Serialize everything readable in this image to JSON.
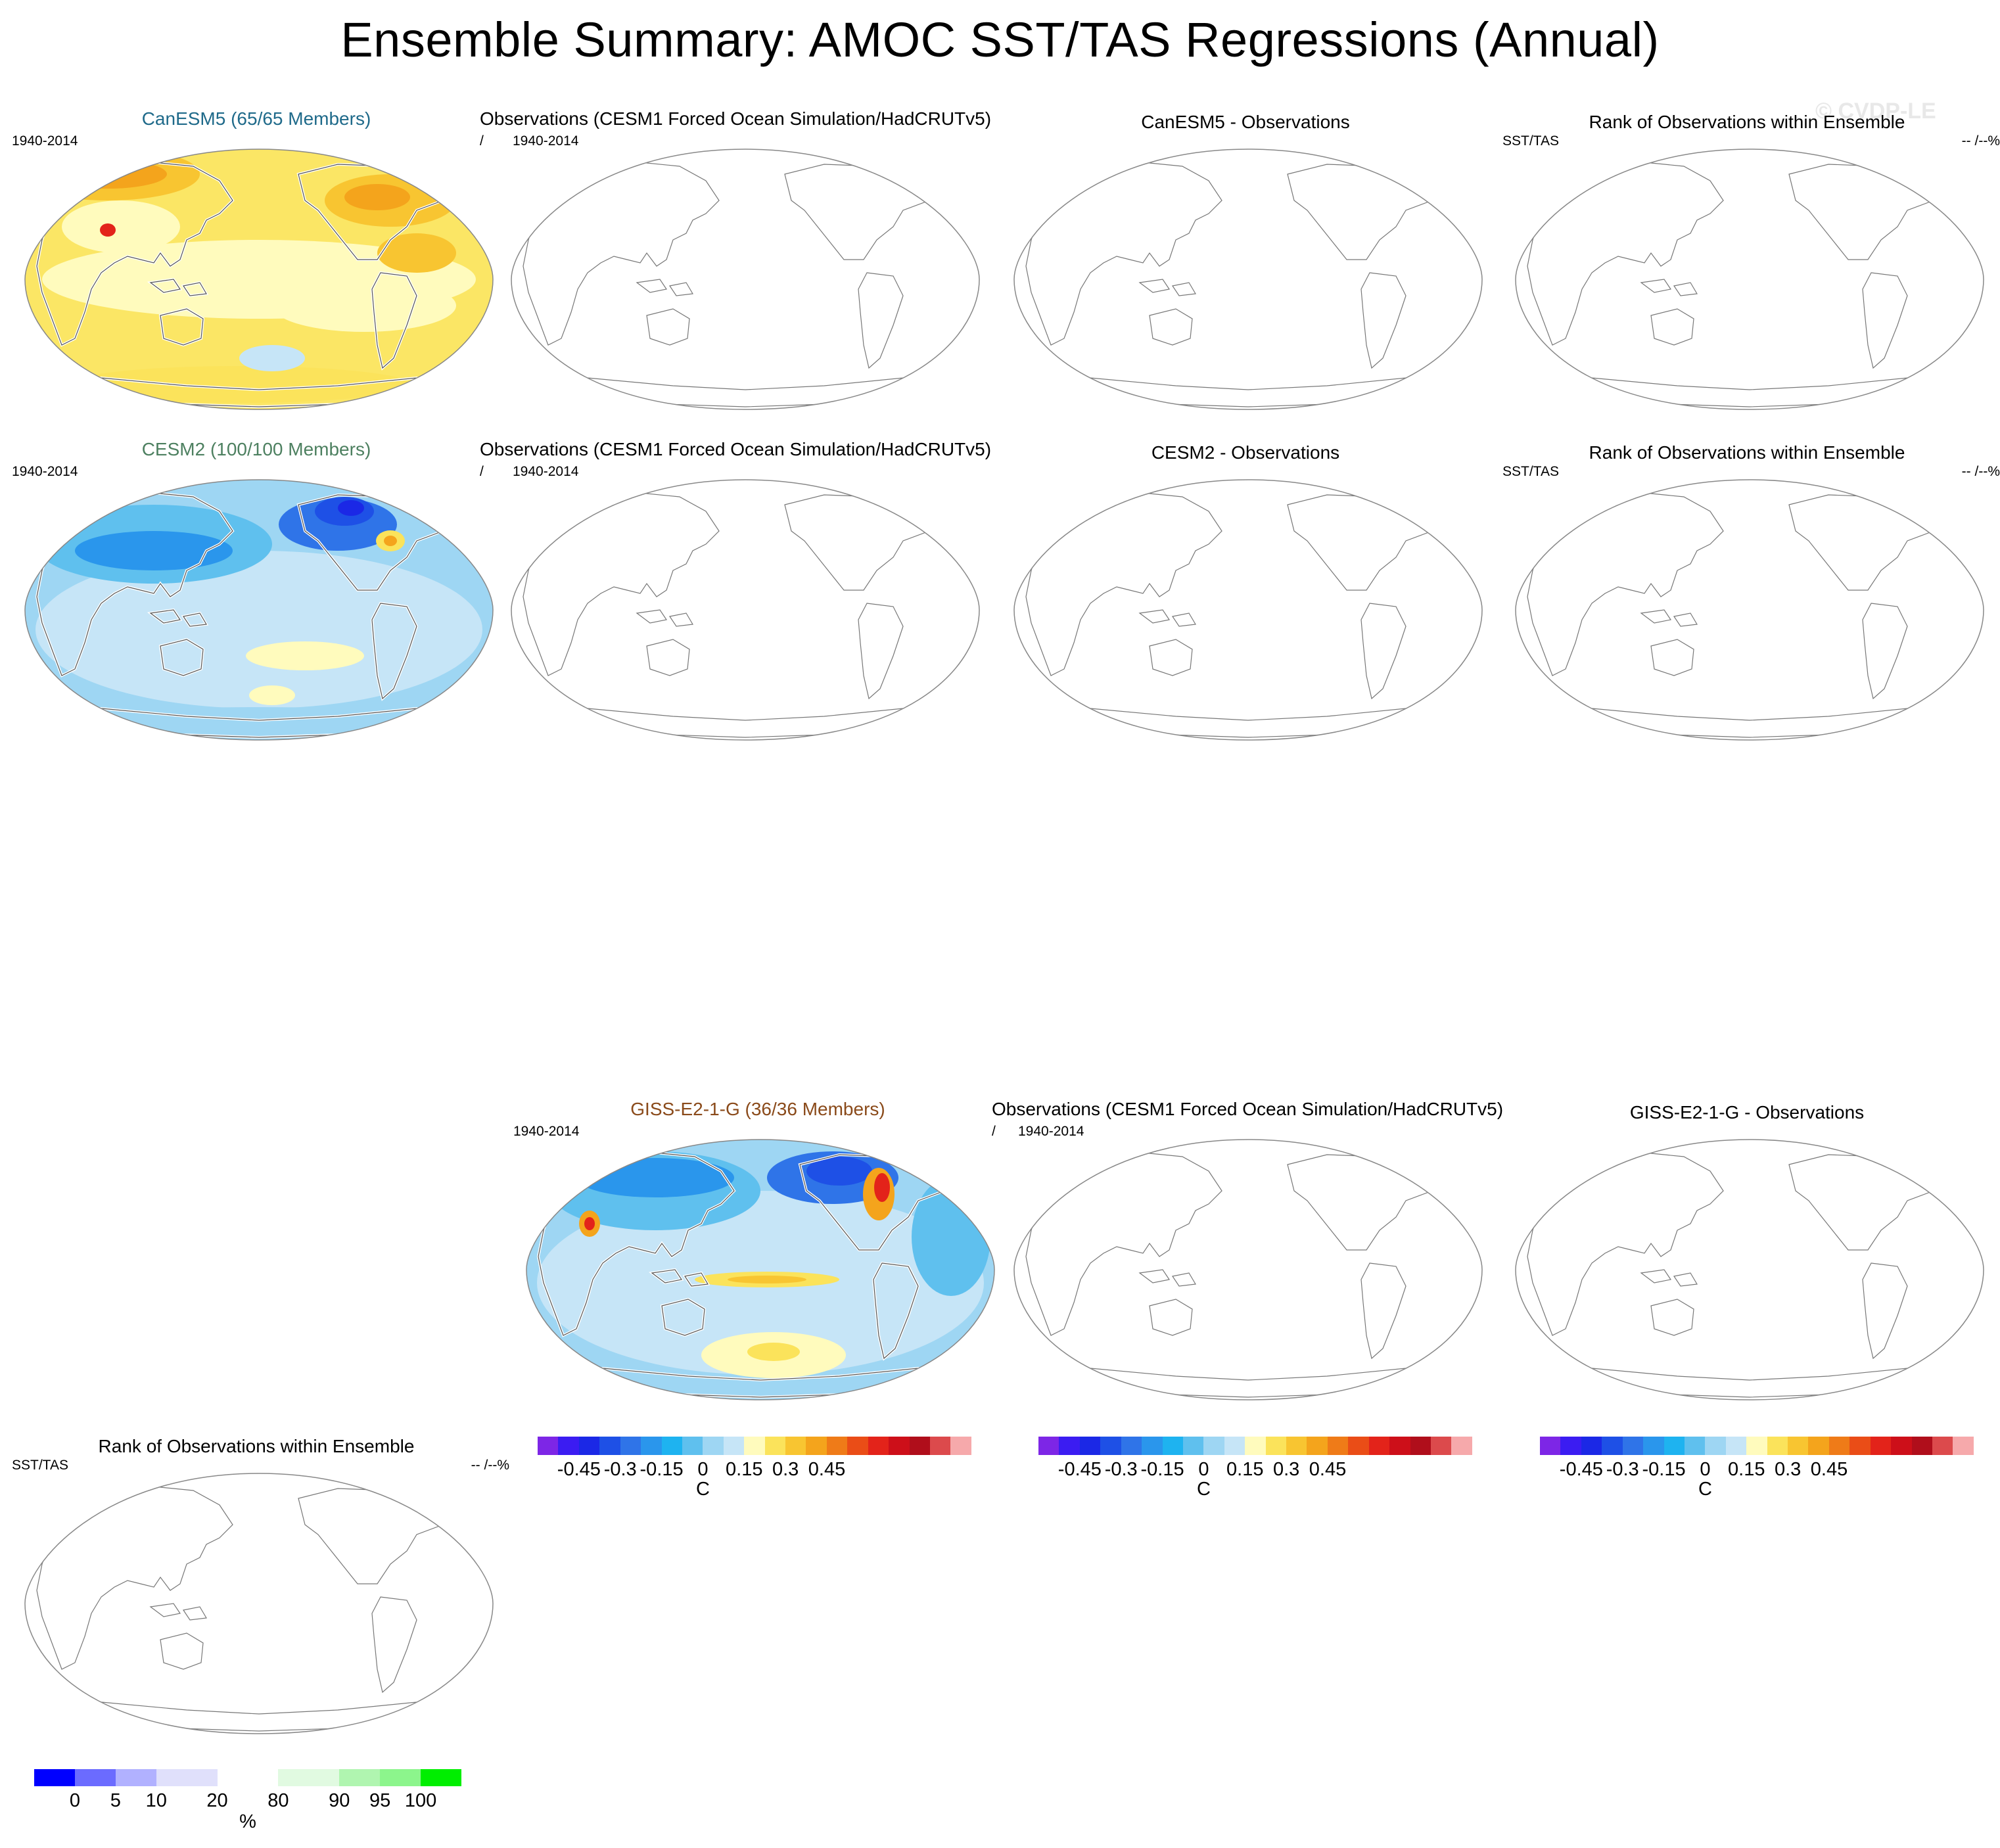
{
  "title": "Ensemble Summary: AMOC SST/TAS Regressions (Annual)",
  "watermark": "© CVDP-LE",
  "colors": {
    "canesm5_title": "#1f6a8a",
    "cesm2_title": "#4d8060",
    "giss_title": "#8a4a1a",
    "coast": "#555555",
    "coast_white": "#ffffff",
    "land_outline": "#777777"
  },
  "rows": [
    {
      "model": {
        "title": "CanESM5 (65/65 Members)",
        "period": "1940-2014",
        "palette": "warm"
      },
      "obs": {
        "title": "Observations (CESM1 Forced Ocean Simulation/HadCRUTv5)",
        "slash": "/",
        "period": "1940-2014"
      },
      "diff": {
        "title": "CanESM5 - Observations"
      },
      "rank": {
        "title": "Rank of Observations within Ensemble",
        "left": "SST/TAS",
        "right": "-- /--%"
      }
    },
    {
      "model": {
        "title": "CESM2 (100/100 Members)",
        "period": "1940-2014",
        "palette": "cool"
      },
      "obs": {
        "title": "Observations (CESM1 Forced Ocean Simulation/HadCRUTv5)",
        "slash": "/",
        "period": "1940-2014"
      },
      "diff": {
        "title": "CESM2 - Observations"
      },
      "rank": {
        "title": "Rank of Observations within Ensemble",
        "left": "SST/TAS",
        "right": "-- /--%"
      }
    },
    {
      "model": {
        "title": "GISS-E2-1-G (36/36 Members)",
        "period": "1940-2014",
        "palette": "cool2"
      },
      "obs": {
        "title": "Observations (CESM1 Forced Ocean Simulation/HadCRUTv5)",
        "slash": "/",
        "period": "1940-2014"
      },
      "diff": {
        "title": "GISS-E2-1-G - Observations"
      },
      "rank": {
        "title": "Rank of Observations within Ensemble",
        "left": "SST/TAS",
        "right": "-- /--%"
      }
    }
  ],
  "temp_colorbar": {
    "colors": [
      "#7d26e6",
      "#3b1cf2",
      "#1b28e6",
      "#1e50e6",
      "#2f74e8",
      "#2a96ec",
      "#1eb3f0",
      "#5fc0ee",
      "#9ed6f3",
      "#c6e5f7",
      "#fffbbd",
      "#fbe35b",
      "#f8c531",
      "#f4a41c",
      "#ef7b18",
      "#ea4d17",
      "#e3231a",
      "#cd0f19",
      "#b00e1b",
      "#dc4a4c",
      "#f6a9ab"
    ],
    "labels": [
      "-0.45",
      "-0.3",
      "-0.15",
      "0",
      "0.15",
      "0.3",
      "0.45"
    ],
    "label_positions": [
      1,
      3,
      5,
      7,
      9,
      11,
      13
    ],
    "unit": "C"
  },
  "rank_colorbar": {
    "colors": [
      "#0000ff",
      "#6b6bff",
      "#b1b1ff",
      "#e0e0fb",
      "#ffffff",
      "#e1fae1",
      "#b0f5b0",
      "#8cf58c",
      "#00ee00"
    ],
    "labels": [
      "0",
      "5",
      "10",
      "20",
      "80",
      "90",
      "95",
      "100"
    ],
    "unit": "%"
  }
}
